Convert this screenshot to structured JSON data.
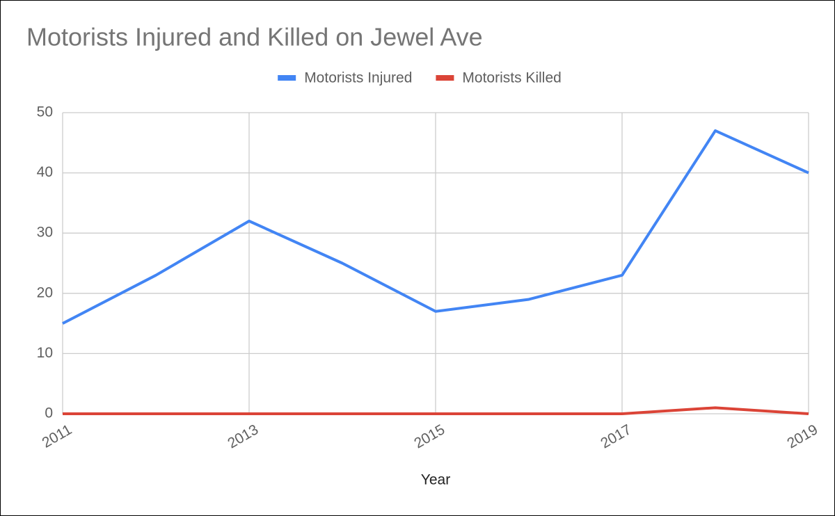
{
  "chart_data": {
    "type": "line",
    "title": "Motorists Injured and Killed on Jewel Ave",
    "x_label": "Year",
    "x": [
      2011,
      2012,
      2013,
      2014,
      2015,
      2016,
      2017,
      2018,
      2019
    ],
    "series": [
      {
        "name": "Motorists Injured",
        "color": "#4285f4",
        "values": [
          15,
          23,
          32,
          25,
          17,
          19,
          23,
          47,
          40
        ]
      },
      {
        "name": "Motorists Killed",
        "color": "#db4437",
        "values": [
          0,
          0,
          0,
          0,
          0,
          0,
          0,
          1,
          0
        ]
      }
    ],
    "xlim": [
      2011,
      2019
    ],
    "xticks": [
      2011,
      2013,
      2015,
      2017,
      2019
    ],
    "ylim": [
      0,
      50
    ],
    "yticks": [
      0,
      10,
      20,
      30,
      40,
      50
    ],
    "grid": true,
    "legend": "top"
  }
}
